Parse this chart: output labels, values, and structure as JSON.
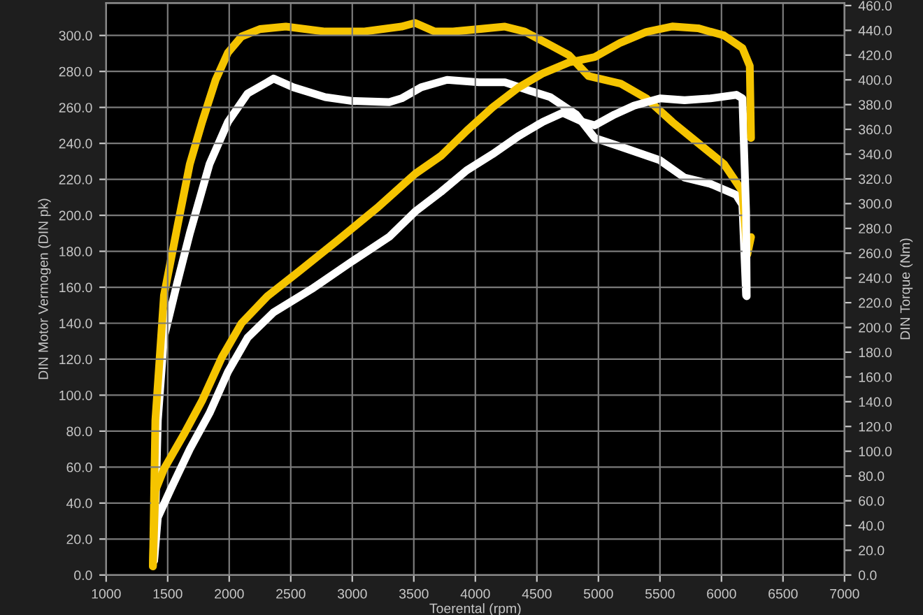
{
  "chart_data": {
    "type": "line",
    "xlabel": "Toerental (rpm)",
    "ylabel": "DIN Motor Vermogen (DIN pk)",
    "y2label": "DIN Torque (Nm)",
    "xlim": [
      1000,
      7000
    ],
    "xticks": [
      1000,
      1500,
      2000,
      2500,
      3000,
      3500,
      4000,
      4500,
      5000,
      5500,
      6000,
      6500,
      7000
    ],
    "ylim": [
      0,
      318
    ],
    "yticks": [
      {
        "value": 0,
        "label": "0.0"
      },
      {
        "value": 20,
        "label": "20.0"
      },
      {
        "value": 40,
        "label": "40.0"
      },
      {
        "value": 60,
        "label": "60.0"
      },
      {
        "value": 80,
        "label": "80.0"
      },
      {
        "value": 100,
        "label": "100.0"
      },
      {
        "value": 120,
        "label": "120.0"
      },
      {
        "value": 140,
        "label": "140.0"
      },
      {
        "value": 160,
        "label": "160.0"
      },
      {
        "value": 180,
        "label": "180.0"
      },
      {
        "value": 200,
        "label": "200.0"
      },
      {
        "value": 220,
        "label": "220.0"
      },
      {
        "value": 240,
        "label": "240.0"
      },
      {
        "value": 260,
        "label": "260.0"
      },
      {
        "value": 280,
        "label": "280.0"
      },
      {
        "value": 300,
        "label": "300.0"
      }
    ],
    "y2lim": [
      0,
      462
    ],
    "y2ticks": [
      {
        "value": 0,
        "label": "0.0"
      },
      {
        "value": 20,
        "label": "20.0"
      },
      {
        "value": 40,
        "label": "40.0"
      },
      {
        "value": 60,
        "label": "60.0"
      },
      {
        "value": 80,
        "label": "80.0"
      },
      {
        "value": 100,
        "label": "100.0"
      },
      {
        "value": 120,
        "label": "120.0"
      },
      {
        "value": 140,
        "label": "140.0"
      },
      {
        "value": 160,
        "label": "160.0"
      },
      {
        "value": 180,
        "label": "180.0"
      },
      {
        "value": 200,
        "label": "200.0"
      },
      {
        "value": 220,
        "label": "220.0"
      },
      {
        "value": 240,
        "label": "240.0"
      },
      {
        "value": 260,
        "label": "260.0"
      },
      {
        "value": 280,
        "label": "280.0"
      },
      {
        "value": 300,
        "label": "300.0"
      },
      {
        "value": 320,
        "label": "320.0"
      },
      {
        "value": 340,
        "label": "340.0"
      },
      {
        "value": 360,
        "label": "360.0"
      },
      {
        "value": 380,
        "label": "380.0"
      },
      {
        "value": 400,
        "label": "400.0"
      },
      {
        "value": 420,
        "label": "420.0"
      },
      {
        "value": 440,
        "label": "440.0"
      },
      {
        "value": 460,
        "label": "460.0"
      }
    ],
    "grid": true,
    "marker": "none",
    "line_style": "solid",
    "series": [
      {
        "color": "#ffffff",
        "axis": "y2",
        "x": [
          1390,
          1420,
          1470,
          1580,
          1680,
          1840,
          1990,
          2150,
          2310,
          2360,
          2520,
          2780,
          2990,
          3300,
          3400,
          3560,
          3770,
          4030,
          4240,
          4450,
          4610,
          4820,
          4970,
          5180,
          5500,
          5700,
          5910,
          6120,
          6170,
          6200
        ],
        "values": [
          12,
          125,
          192,
          237,
          276,
          332,
          366,
          389,
          398,
          401,
          394,
          386,
          383,
          382,
          385,
          394,
          400,
          398,
          398,
          391,
          386,
          372,
          353,
          346,
          335,
          321,
          316,
          307,
          299,
          226
        ]
      },
      {
        "color": "#ffffff",
        "x": [
          1390,
          1420,
          1520,
          1680,
          1840,
          1990,
          2150,
          2360,
          2670,
          2990,
          3300,
          3510,
          3720,
          3930,
          4140,
          4350,
          4550,
          4710,
          4870,
          4970,
          5130,
          5290,
          5500,
          5700,
          5910,
          6120,
          6170,
          6200,
          6205
        ],
        "values": [
          8,
          32,
          47,
          70,
          90,
          113,
          132,
          146,
          159,
          174,
          188,
          202,
          213,
          225,
          234,
          244,
          252,
          257,
          252,
          250,
          256,
          261,
          265,
          264,
          265,
          267,
          265,
          202,
          155
        ]
      },
      {
        "color": "#f5c400",
        "axis": "y2",
        "x": [
          1380,
          1400,
          1470,
          1580,
          1680,
          1780,
          1890,
          1990,
          2100,
          2250,
          2460,
          2780,
          3090,
          3400,
          3510,
          3670,
          3820,
          4030,
          4240,
          4400,
          4610,
          4760,
          4920,
          5180,
          5390,
          5600,
          5810,
          6020,
          6170,
          6210,
          6240
        ],
        "values": [
          7,
          125,
          226,
          282,
          332,
          366,
          400,
          422,
          435,
          441,
          443,
          439,
          439,
          443,
          446,
          439,
          439,
          441,
          443,
          439,
          428,
          420,
          403,
          397,
          385,
          366,
          349,
          332,
          310,
          259,
          273
        ]
      },
      {
        "color": "#f5c400",
        "x": [
          1380,
          1400,
          1470,
          1630,
          1780,
          1940,
          2100,
          2310,
          2570,
          2880,
          3200,
          3510,
          3720,
          3930,
          4140,
          4350,
          4550,
          4760,
          4970,
          5180,
          5390,
          5600,
          5810,
          6020,
          6170,
          6230,
          6240
        ],
        "values": [
          5,
          47,
          59,
          78,
          97,
          121,
          140,
          155,
          169,
          186,
          204,
          223,
          233,
          247,
          260,
          271,
          279,
          285,
          288,
          296,
          302,
          305,
          304,
          300,
          293,
          283,
          243
        ]
      }
    ]
  }
}
